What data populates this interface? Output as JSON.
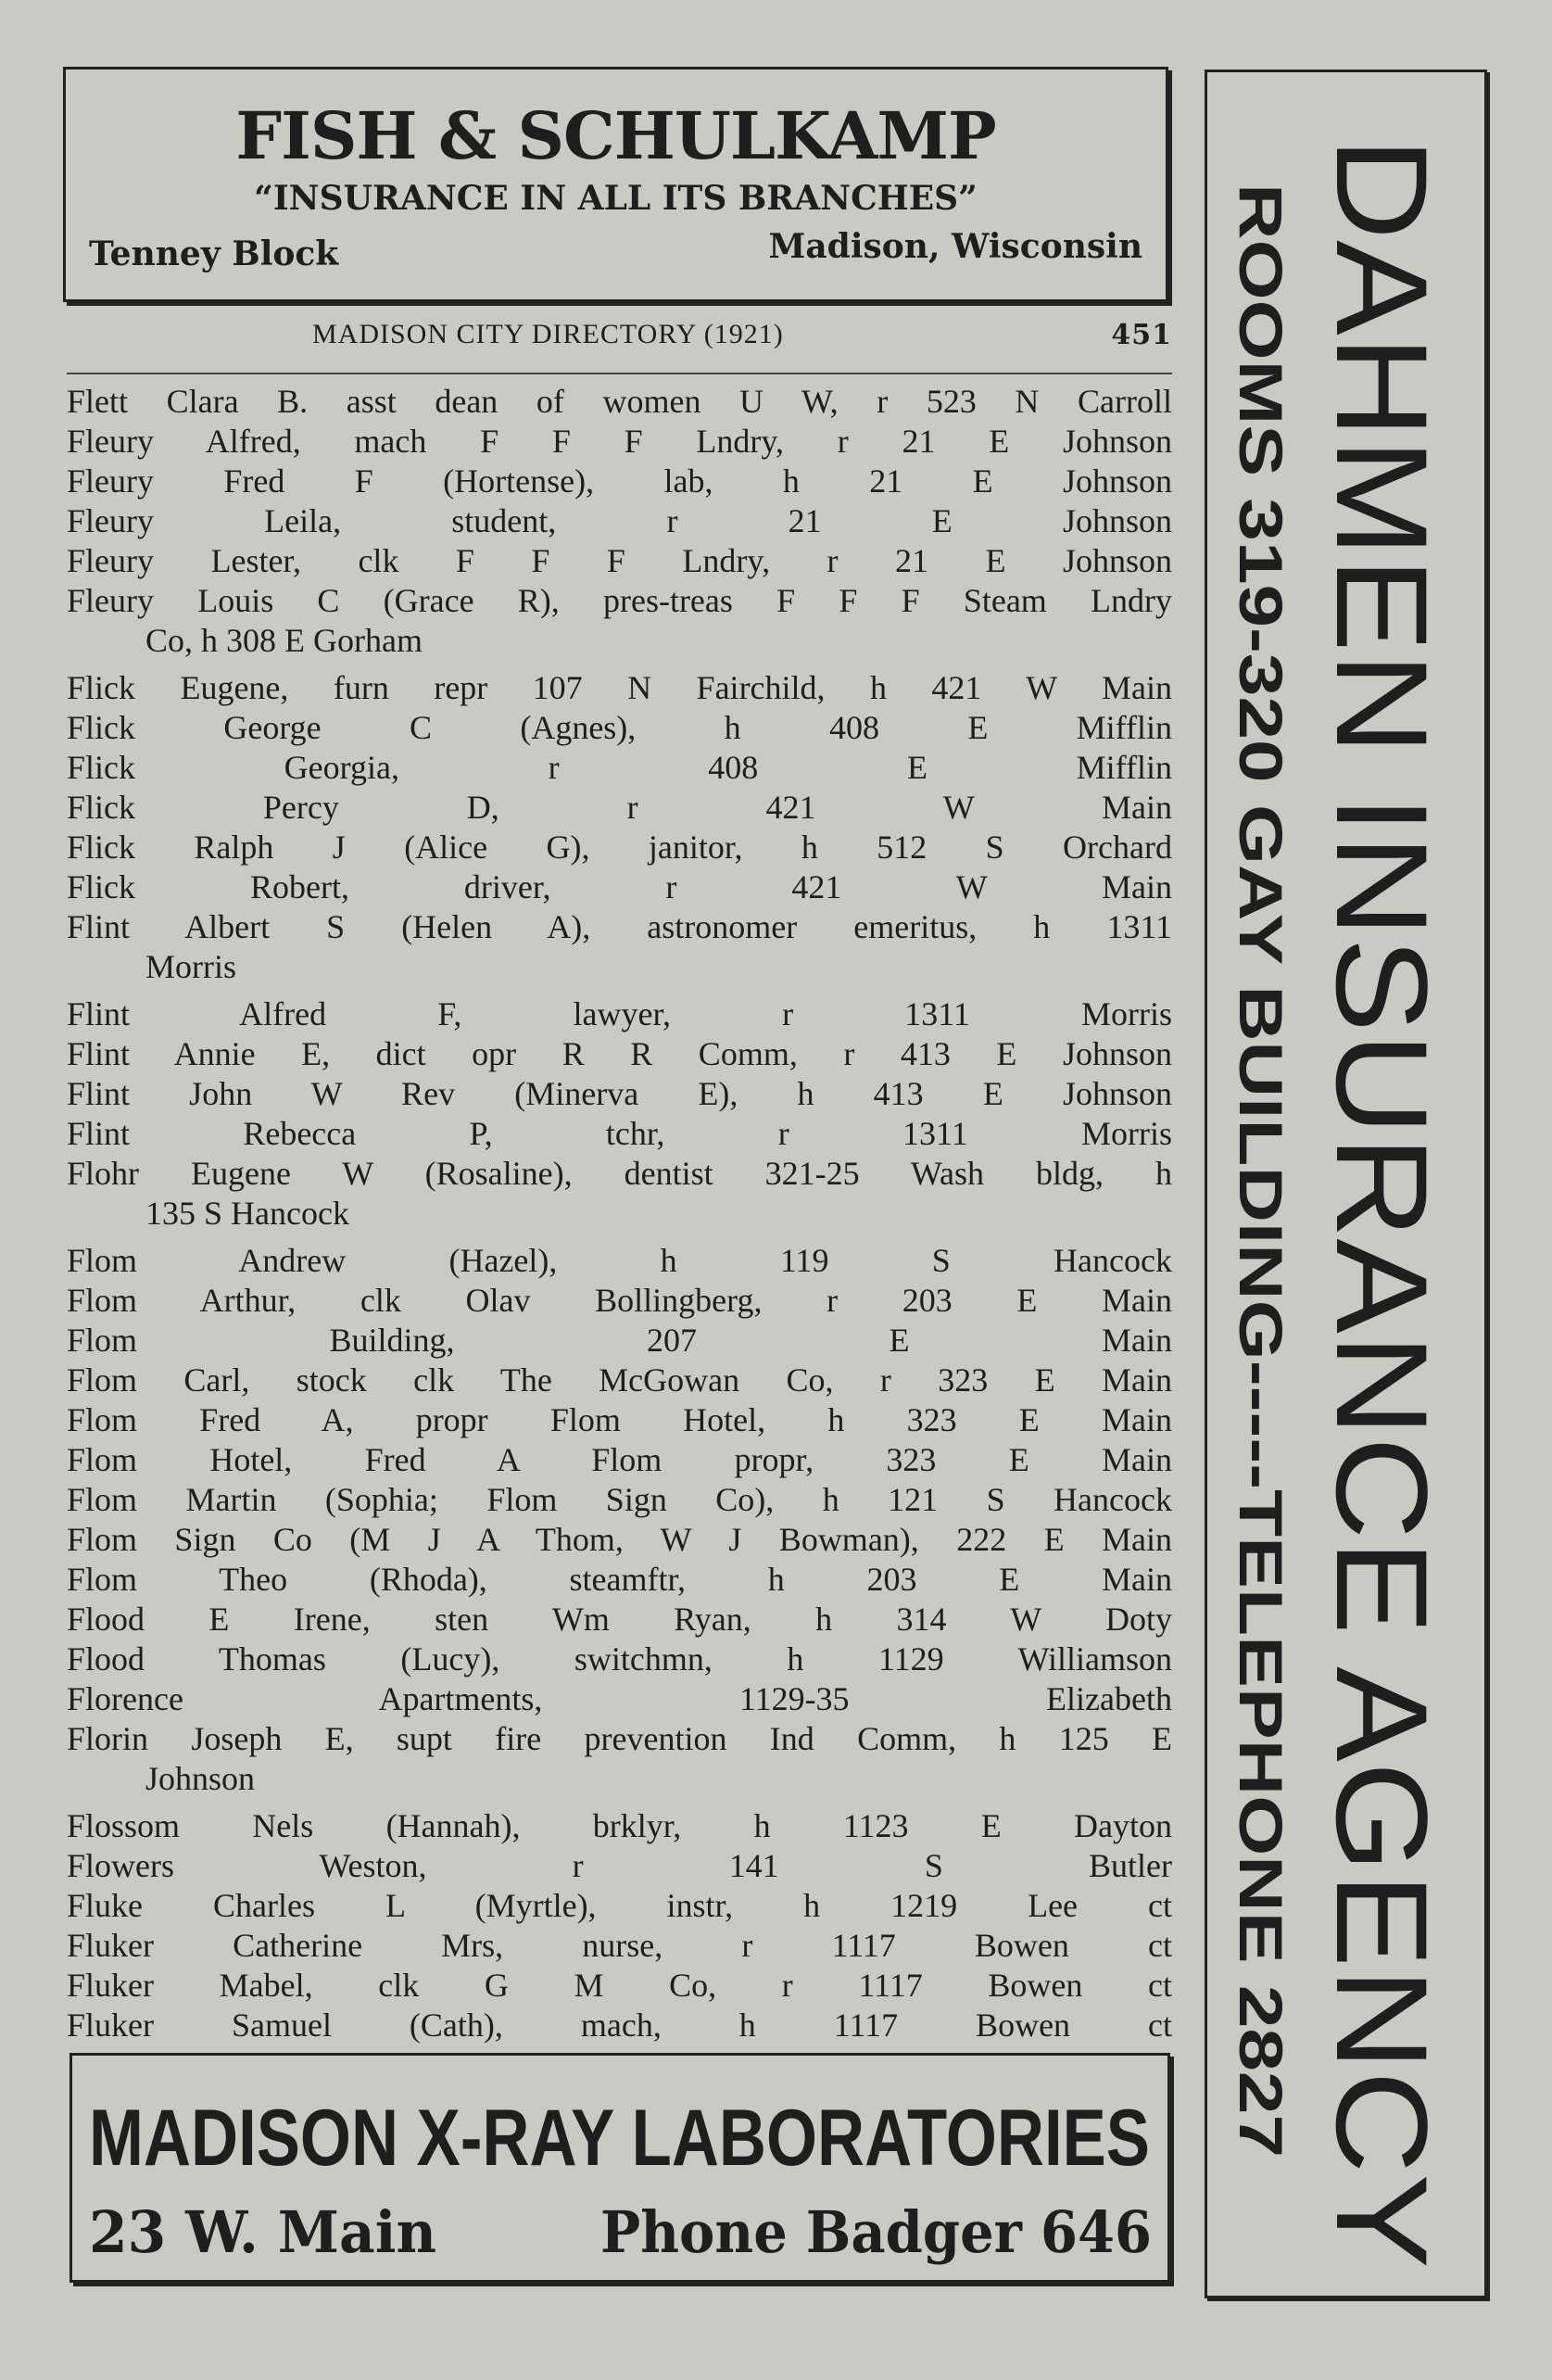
{
  "top_ad": {
    "name": "FISH & SCHULKAMP",
    "slogan": "“INSURANCE IN ALL ITS BRANCHES”",
    "location_left": "Tenney Block",
    "location_right": "Madison, Wisconsin"
  },
  "running_head": {
    "title": "MADISON CITY DIRECTORY (1921)",
    "page_number": "451"
  },
  "entries": [
    {
      "text": "Flett Clara B. asst dean of women U W, r 523 N Carroll"
    },
    {
      "text": "Fleury Alfred, mach F F F Lndry, r 21 E Johnson"
    },
    {
      "text": "Fleury Fred F (Hortense), lab, h 21 E Johnson"
    },
    {
      "text": "Fleury Leila, student, r 21 E Johnson"
    },
    {
      "text": "Fleury Lester, clk F F F Lndry, r 21 E Johnson"
    },
    {
      "text": "Fleury Louis C (Grace R), pres-treas F F F Steam Lndry",
      "cont": "Co, h 308 E Gorham"
    },
    {
      "text": "Flick Eugene, furn repr 107 N Fairchild, h 421 W Main"
    },
    {
      "text": "Flick George C (Agnes), h 408 E Mifflin"
    },
    {
      "text": "Flick Georgia, r 408 E Mifflin"
    },
    {
      "text": "Flick Percy D, r 421 W Main"
    },
    {
      "text": "Flick Ralph J (Alice G), janitor, h 512 S Orchard"
    },
    {
      "text": "Flick Robert, driver, r 421 W Main"
    },
    {
      "text": "Flint Albert S (Helen A), astronomer emeritus, h 1311",
      "cont": "Morris"
    },
    {
      "text": "Flint Alfred F, lawyer, r 1311 Morris"
    },
    {
      "text": "Flint Annie E, dict opr R R Comm, r 413 E Johnson"
    },
    {
      "text": "Flint John W Rev (Minerva E), h 413 E Johnson"
    },
    {
      "text": "Flint Rebecca P, tchr, r 1311 Morris"
    },
    {
      "text": "Flohr Eugene W (Rosaline), dentist 321-25 Wash bldg, h",
      "cont": "135 S Hancock"
    },
    {
      "text": "Flom Andrew (Hazel), h 119 S Hancock"
    },
    {
      "text": "Flom Arthur, clk Olav Bollingberg, r 203 E Main"
    },
    {
      "text": "Flom Building, 207 E Main"
    },
    {
      "text": "Flom Carl, stock clk The McGowan Co, r 323 E Main"
    },
    {
      "text": "Flom Fred A, propr Flom Hotel, h 323 E Main"
    },
    {
      "text": "Flom Hotel, Fred A Flom propr, 323 E Main"
    },
    {
      "text": "Flom Martin (Sophia; Flom Sign Co), h 121 S Hancock"
    },
    {
      "text": "Flom Sign Co (M J A Thom, W J Bowman), 222 E Main"
    },
    {
      "text": "Flom Theo (Rhoda), steamftr, h 203 E Main"
    },
    {
      "text": "Flood E Irene, sten Wm Ryan, h 314 W Doty"
    },
    {
      "text": "Flood Thomas (Lucy), switchmn, h 1129 Williamson"
    },
    {
      "text": "Florence Apartments, 1129-35 Elizabeth"
    },
    {
      "text": "Florin Joseph E, supt fire prevention Ind Comm, h 125 E",
      "cont": "Johnson"
    },
    {
      "text": "Flossom Nels (Hannah), brklyr, h 1123 E Dayton"
    },
    {
      "text": "Flowers Weston, r 141 S Butler"
    },
    {
      "text": "Fluke Charles L (Myrtle), instr, h 1219 Lee ct"
    },
    {
      "text": "Fluker Catherine Mrs, nurse, r 1117 Bowen ct"
    },
    {
      "text": "Fluker Mabel, clk G M Co, r 1117 Bowen ct"
    },
    {
      "text": "Fluker Samuel (Cath), mach, h 1117 Bowen ct"
    }
  ],
  "bottom_ad": {
    "name": "MADISON X-RAY LABORATORIES",
    "address": "23 W. Main",
    "phone": "Phone Badger 646"
  },
  "right_ad": {
    "name": "DAHMEN INSURANCE AGENCY",
    "details": "ROOMS 319-320 GAY BUILDING-----TELEPHONE 2827"
  }
}
